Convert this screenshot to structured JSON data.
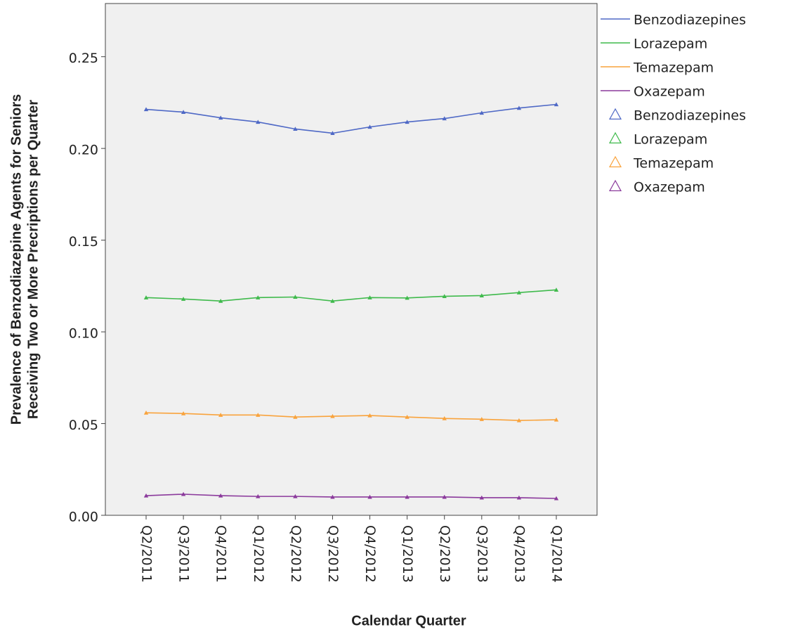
{
  "chart_data": {
    "type": "line",
    "y_label": [
      "Prevalence of Benzodiazepine Agents for Seniors",
      "Receiving Two or More Precriptions per Quarter"
    ],
    "x_label": "Calendar Quarter",
    "categories": [
      "Q2/2011",
      "Q3/2011",
      "Q4/2011",
      "Q1/2012",
      "Q2/2012",
      "Q3/2012",
      "Q4/2012",
      "Q1/2013",
      "Q2/2013",
      "Q3/2013",
      "Q4/2013",
      "Q1/2014"
    ],
    "series": [
      {
        "name": "Benzodiazepines",
        "color": "#4f69c6",
        "values": [
          0.2213,
          0.2198,
          0.2167,
          0.2144,
          0.2106,
          0.2083,
          0.2117,
          0.2144,
          0.2163,
          0.2194,
          0.222,
          0.224
        ]
      },
      {
        "name": "Lorazepam",
        "color": "#3fba4c",
        "values": [
          0.1187,
          0.1179,
          0.1168,
          0.1187,
          0.119,
          0.1168,
          0.1187,
          0.1185,
          0.1194,
          0.1198,
          0.1214,
          0.1229
        ]
      },
      {
        "name": "Temazepam",
        "color": "#f9a33c",
        "values": [
          0.0559,
          0.0555,
          0.0547,
          0.0547,
          0.0536,
          0.054,
          0.0544,
          0.0536,
          0.0528,
          0.0524,
          0.0517,
          0.0521
        ]
      },
      {
        "name": "Oxazepam",
        "color": "#8b3a9c",
        "values": [
          0.0107,
          0.0115,
          0.0107,
          0.0103,
          0.0103,
          0.01,
          0.01,
          0.01,
          0.01,
          0.0096,
          0.0096,
          0.0092
        ]
      }
    ],
    "ylim": [
      0,
      0.279
    ],
    "yticks": [
      {
        "value": 0,
        "label": "0.00"
      },
      {
        "value": 0.05,
        "label": "0.05"
      },
      {
        "value": 0.1,
        "label": "0.10"
      },
      {
        "value": 0.15,
        "label": "0.15"
      },
      {
        "value": 0.2,
        "label": "0.20"
      },
      {
        "value": 0.25,
        "label": "0.25"
      }
    ],
    "marker": "triangle"
  }
}
